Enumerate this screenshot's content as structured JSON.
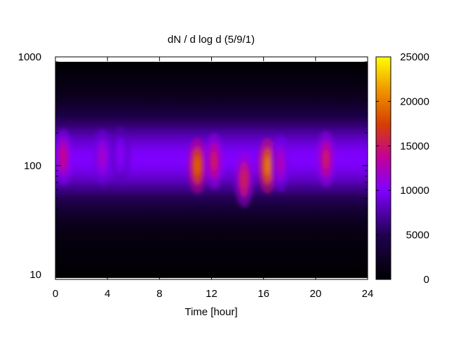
{
  "chart_data": {
    "type": "heatmap",
    "title": "dN / d log d (5/9/1)",
    "xlabel": "Time [hour]",
    "ylabel": "",
    "xlim": [
      0,
      24
    ],
    "ylim": [
      9,
      1000
    ],
    "yscale": "log",
    "x_ticks": [
      0,
      4,
      8,
      12,
      16,
      20,
      24
    ],
    "x_tick_labels": [
      "0",
      "4",
      "8",
      "12",
      "16",
      "20",
      "24"
    ],
    "y_ticks": [
      10,
      100,
      1000
    ],
    "y_tick_labels": [
      "10",
      "100",
      "1000"
    ],
    "colorbar": {
      "range": [
        0,
        25000
      ],
      "ticks": [
        0,
        5000,
        10000,
        15000,
        20000,
        25000
      ],
      "tick_labels": [
        "0",
        "5000",
        "10000",
        "15000",
        "20000",
        "25000"
      ],
      "palette": "gnuplot-black-purple-red-orange-yellow"
    },
    "data_extent": {
      "x": [
        0,
        24
      ],
      "y": [
        9.3,
        900
      ]
    },
    "background_level": 3000,
    "size_mode_diameter": 115,
    "hotspots": [
      {
        "time": 0.6,
        "diameter": 120,
        "value": 14000
      },
      {
        "time": 3.6,
        "diameter": 120,
        "value": 12000
      },
      {
        "time": 5.0,
        "diameter": 125,
        "value": 10500
      },
      {
        "time": 10.9,
        "diameter": 100,
        "value": 19000
      },
      {
        "time": 12.2,
        "diameter": 110,
        "value": 15000
      },
      {
        "time": 14.5,
        "diameter": 75,
        "value": 15500
      },
      {
        "time": 16.3,
        "diameter": 100,
        "value": 20000
      },
      {
        "time": 17.3,
        "diameter": 105,
        "value": 12500
      },
      {
        "time": 20.8,
        "diameter": 115,
        "value": 15000
      }
    ]
  }
}
